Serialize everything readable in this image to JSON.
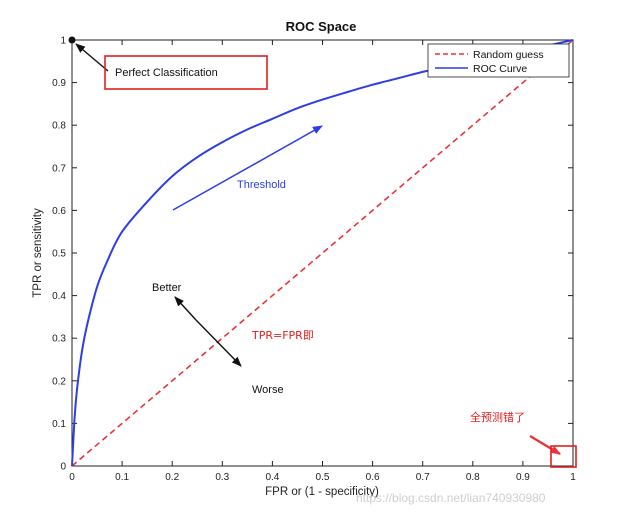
{
  "chart_data": {
    "type": "line",
    "title": "ROC Space",
    "xlabel": "FPR or (1 - specificity)",
    "ylabel": "TPR or sensitivity",
    "xlim": [
      0,
      1
    ],
    "ylim": [
      0,
      1
    ],
    "x_ticks": [
      "0",
      "0.1",
      "0.2",
      "0.3",
      "0.4",
      "0.5",
      "0.6",
      "0.7",
      "0.8",
      "0.9",
      "1"
    ],
    "y_ticks": [
      "0",
      "0.1",
      "0.2",
      "0.3",
      "0.4",
      "0.5",
      "0.6",
      "0.7",
      "0.8",
      "0.9",
      "1"
    ],
    "grid": false,
    "legend_position": "top-right",
    "series": [
      {
        "name": "Random guess",
        "style": "dashed",
        "color": "#e8333a",
        "x": [
          0,
          1
        ],
        "y": [
          0,
          1
        ]
      },
      {
        "name": "ROC Curve",
        "style": "solid",
        "color": "#2b3ee8",
        "x": [
          0,
          0.005,
          0.01,
          0.02,
          0.03,
          0.05,
          0.07,
          0.1,
          0.15,
          0.2,
          0.25,
          0.3,
          0.35,
          0.4,
          0.45,
          0.5,
          0.55,
          0.6,
          0.65,
          0.7,
          0.75,
          0.8,
          0.85,
          0.9,
          0.95,
          1.0
        ],
        "y": [
          0,
          0.11,
          0.18,
          0.27,
          0.33,
          0.42,
          0.48,
          0.55,
          0.62,
          0.68,
          0.725,
          0.76,
          0.79,
          0.815,
          0.84,
          0.86,
          0.878,
          0.895,
          0.91,
          0.925,
          0.938,
          0.95,
          0.962,
          0.974,
          0.987,
          1.0
        ]
      }
    ],
    "annotations": {
      "perfect": "Perfect Classification",
      "threshold": "Threshold",
      "better": "Better",
      "worse": "Worse",
      "tpr_fpr": "TPR=FPR即",
      "all_wrong": "全预测错了"
    },
    "watermark": "https://blog.csdn.net/lian740930980"
  }
}
